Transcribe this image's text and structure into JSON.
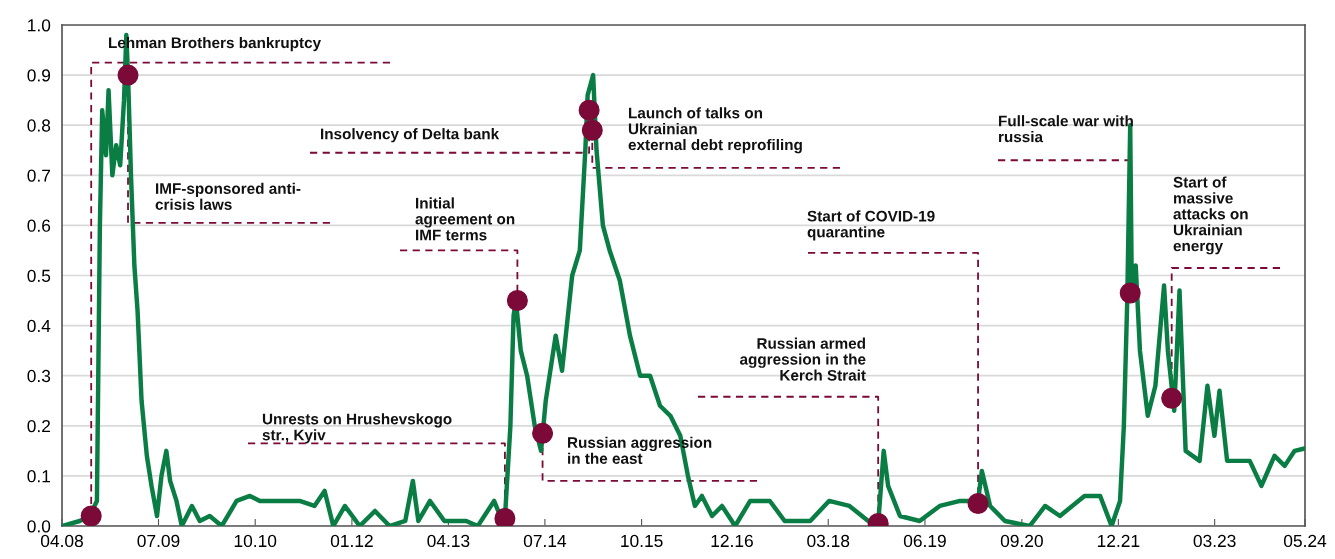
{
  "chart_data": {
    "type": "line",
    "grid": "y",
    "xlim": [
      "2008-04-01",
      "2024-05-01"
    ],
    "ylim": [
      0,
      1
    ],
    "xticks": [
      {
        "value": "2008-04-01",
        "label": "04.08"
      },
      {
        "value": "2009-07-01",
        "label": "07.09"
      },
      {
        "value": "2010-10-01",
        "label": "10.10"
      },
      {
        "value": "2012-01-01",
        "label": "01.12"
      },
      {
        "value": "2013-04-01",
        "label": "04.13"
      },
      {
        "value": "2014-07-01",
        "label": "07.14"
      },
      {
        "value": "2015-10-01",
        "label": "10.15"
      },
      {
        "value": "2016-12-01",
        "label": "12.16"
      },
      {
        "value": "2018-03-01",
        "label": "03.18"
      },
      {
        "value": "2019-06-01",
        "label": "06.19"
      },
      {
        "value": "2020-09-01",
        "label": "09.20"
      },
      {
        "value": "2021-12-01",
        "label": "12.21"
      },
      {
        "value": "2023-03-01",
        "label": "03.23"
      },
      {
        "value": "2024-05-01",
        "label": "05.24"
      }
    ],
    "yticks": [
      {
        "value": 0,
        "label": "0.0"
      },
      {
        "value": 0.1,
        "label": "0.1"
      },
      {
        "value": 0.2,
        "label": "0.2"
      },
      {
        "value": 0.3,
        "label": "0.3"
      },
      {
        "value": 0.4,
        "label": "0.4"
      },
      {
        "value": 0.5,
        "label": "0.5"
      },
      {
        "value": 0.6,
        "label": "0.6"
      },
      {
        "value": 0.7,
        "label": "0.7"
      },
      {
        "value": 0.8,
        "label": "0.8"
      },
      {
        "value": 0.9,
        "label": "0.9"
      },
      {
        "value": 1,
        "label": "1.0"
      }
    ],
    "series": [
      {
        "color": "#0a7d45",
        "line_style": "solid",
        "marker": "none",
        "x": [
          "2008-04-01",
          "2008-06-24",
          "2008-08-10",
          "2008-09-13",
          "2008-09-27",
          "2008-10-08",
          "2008-10-26",
          "2008-11-07",
          "2008-11-25",
          "2008-12-13",
          "2009-01-01",
          "2009-01-19",
          "2009-01-30",
          "2009-02-07",
          "2009-02-21",
          "2009-03-09",
          "2009-03-24",
          "2009-04-12",
          "2009-05-07",
          "2009-05-29",
          "2009-06-24",
          "2009-07-15",
          "2009-08-07",
          "2009-08-25",
          "2009-09-24",
          "2009-10-19",
          "2009-12-06",
          "2010-01-12",
          "2010-02-28",
          "2010-04-26",
          "2010-07-05",
          "2010-09-06",
          "2010-10-23",
          "2011-01-26",
          "2011-04-29",
          "2011-07-08",
          "2011-08-25",
          "2011-10-05",
          "2011-11-29",
          "2012-02-07",
          "2012-04-19",
          "2012-06-27",
          "2012-09-09",
          "2012-10-15",
          "2012-11-10",
          "2013-01-04",
          "2013-03-13",
          "2013-06-24",
          "2013-08-18",
          "2013-11-03",
          "2013-12-02",
          "2013-12-24",
          "2014-01-19",
          "2014-02-03",
          "2014-02-14",
          "2014-03-09",
          "2014-04-08",
          "2014-05-14",
          "2014-06-13",
          "2014-07-05",
          "2014-08-21",
          "2014-09-20",
          "2014-11-07",
          "2014-12-13",
          "2015-01-08",
          "2015-01-19",
          "2015-02-14",
          "2015-03-02",
          "2015-04-01",
          "2015-05-03",
          "2015-06-20",
          "2015-08-07",
          "2015-09-24",
          "2015-11-10",
          "2015-12-27",
          "2016-02-14",
          "2016-04-01",
          "2016-05-07",
          "2016-06-09",
          "2016-07-12",
          "2016-08-29",
          "2016-10-15",
          "2016-12-16",
          "2017-02-25",
          "2017-05-29",
          "2017-08-07",
          "2017-12-06",
          "2018-03-05",
          "2018-06-09",
          "2018-09-06",
          "2018-10-23",
          "2018-11-18",
          "2018-12-09",
          "2019-02-03",
          "2019-05-07",
          "2019-08-10",
          "2019-11-14",
          "2020-02-07",
          "2020-02-25",
          "2020-04-04",
          "2020-06-13",
          "2020-10-08",
          "2020-12-20",
          "2021-02-28",
          "2021-06-24",
          "2021-09-06",
          "2021-10-30",
          "2021-12-09",
          "2021-12-27",
          "2022-01-12",
          "2022-01-26",
          "2022-02-03",
          "2022-02-21",
          "2022-03-13",
          "2022-04-19",
          "2022-05-25",
          "2022-07-05",
          "2022-07-23",
          "2022-08-22",
          "2022-09-16",
          "2022-10-15",
          "2022-12-20",
          "2023-01-26",
          "2023-02-28",
          "2023-03-24",
          "2023-04-29",
          "2023-08-14",
          "2023-10-08",
          "2023-12-09",
          "2024-01-26",
          "2024-03-13",
          "2024-05-01"
        ],
        "values": [
          0.0,
          0.01,
          0.02,
          0.05,
          0.6,
          0.83,
          0.74,
          0.87,
          0.7,
          0.76,
          0.72,
          0.85,
          0.98,
          0.9,
          0.7,
          0.52,
          0.43,
          0.25,
          0.14,
          0.08,
          0.02,
          0.1,
          0.15,
          0.09,
          0.05,
          0.0,
          0.04,
          0.01,
          0.02,
          0.0,
          0.05,
          0.06,
          0.05,
          0.05,
          0.05,
          0.04,
          0.07,
          0.0,
          0.04,
          0.0,
          0.03,
          0.0,
          0.01,
          0.09,
          0.01,
          0.05,
          0.01,
          0.01,
          0.0,
          0.05,
          0.02,
          0.015,
          0.2,
          0.42,
          0.45,
          0.35,
          0.3,
          0.2,
          0.15,
          0.25,
          0.38,
          0.31,
          0.5,
          0.55,
          0.75,
          0.86,
          0.9,
          0.75,
          0.6,
          0.55,
          0.49,
          0.38,
          0.3,
          0.3,
          0.24,
          0.22,
          0.18,
          0.1,
          0.04,
          0.06,
          0.02,
          0.04,
          0.0,
          0.05,
          0.05,
          0.01,
          0.01,
          0.05,
          0.04,
          0.01,
          0.005,
          0.15,
          0.08,
          0.02,
          0.01,
          0.04,
          0.05,
          0.05,
          0.11,
          0.04,
          0.01,
          0.0,
          0.04,
          0.02,
          0.06,
          0.06,
          0.0,
          0.05,
          0.2,
          0.45,
          0.8,
          0.45,
          0.52,
          0.35,
          0.22,
          0.28,
          0.48,
          0.35,
          0.23,
          0.47,
          0.15,
          0.13,
          0.28,
          0.18,
          0.27,
          0.13,
          0.13,
          0.08,
          0.14,
          0.12,
          0.15,
          0.155
        ]
      },
      {
        "type": "scatter",
        "color": "#7b0a38",
        "marker": "circle",
        "x": [
          "2008-08-17",
          "2009-02-07",
          "2013-12-24",
          "2014-02-21",
          "2014-06-20",
          "2015-01-26",
          "2015-02-10",
          "2018-10-23",
          "2020-02-07",
          "2022-01-26",
          "2022-08-10"
        ],
        "values": [
          0.02,
          0.9,
          0.015,
          0.45,
          0.185,
          0.83,
          0.79,
          0.005,
          0.045,
          0.465,
          0.255
        ]
      }
    ],
    "annotations": [
      {
        "text": "Lehman Brothers bankruptcy",
        "x": "2008-08-17",
        "y": 0.02
      },
      {
        "text": "IMF-sponsored anti-\ncrisis laws",
        "x": "2009-02-07",
        "y": 0.9
      },
      {
        "text": "Unrests on Hrushevskogo\nstr., Kyiv",
        "x": "2013-12-24",
        "y": 0.015
      },
      {
        "text": "Initial\nagreement on\nIMF terms",
        "x": "2014-02-21",
        "y": 0.45
      },
      {
        "text": "Russian aggression\nin the east",
        "x": "2014-06-20",
        "y": 0.185
      },
      {
        "text": "Insolvency of Delta bank",
        "x": "2015-01-26",
        "y": 0.83
      },
      {
        "text": "Launch of talks on\nUkrainian\nexternal debt reprofiling",
        "x": "2015-02-10",
        "y": 0.79
      },
      {
        "text": "Russian armed\naggression in the\nKerch Strait",
        "x": "2018-10-23",
        "y": 0.005
      },
      {
        "text": "Start of COVID-19\nquarantine",
        "x": "2020-02-07",
        "y": 0.045
      },
      {
        "text": "Full-scale war with\nrussia",
        "x": "2022-01-26",
        "y": 0.465
      },
      {
        "text": "Start of\nmassive\nattacks on\nUkrainian\nenergy",
        "x": "2022-08-10",
        "y": 0.255
      }
    ]
  }
}
